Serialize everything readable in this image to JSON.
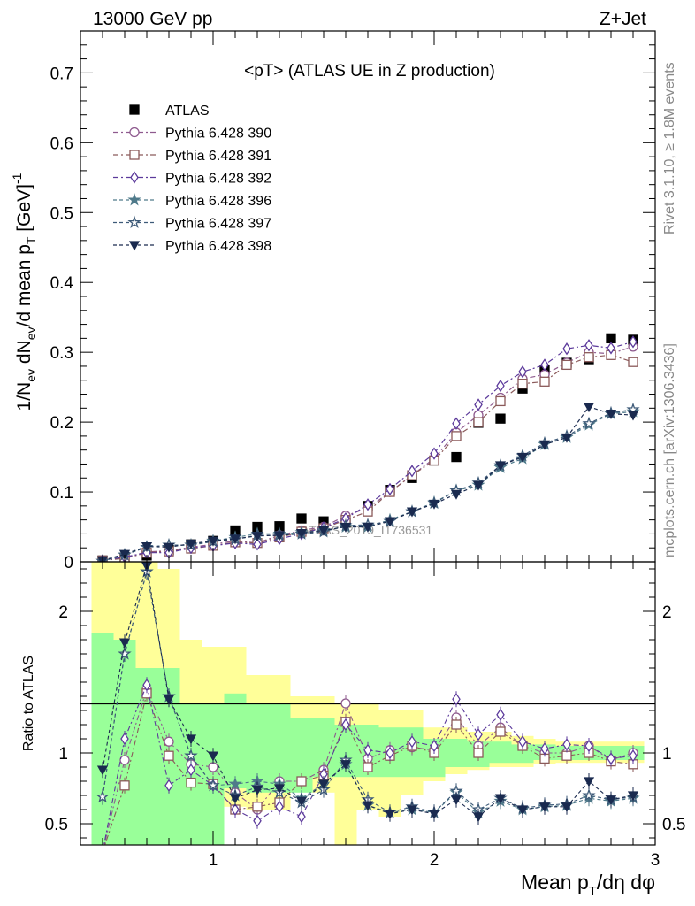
{
  "header": {
    "left": "13000 GeV pp",
    "right": "Z+Jet"
  },
  "side_text": {
    "top": "Rivet 3.1.10, ≥ 1.8M events",
    "bottom": "mcplots.cern.ch [arXiv:1306.3436]"
  },
  "watermark": "ATLAS_2019_I1736531",
  "chart_data": [
    {
      "type": "scatter",
      "panel": "main",
      "title": "<pT> (ATLAS UE in Z production)",
      "ylabel": "1/N_ev dN_ev/d mean p_T [GeV]^-1",
      "xlim": [
        0.4,
        3.0
      ],
      "ylim": [
        0,
        0.76
      ],
      "yticks": [
        0,
        0.1,
        0.2,
        0.3,
        0.4,
        0.5,
        0.6,
        0.7
      ],
      "x": [
        0.5,
        0.6,
        0.7,
        0.8,
        0.9,
        1.0,
        1.1,
        1.2,
        1.3,
        1.4,
        1.5,
        1.6,
        1.7,
        1.8,
        1.9,
        2.0,
        2.1,
        2.2,
        2.3,
        2.4,
        2.5,
        2.6,
        2.7,
        2.8,
        2.9
      ],
      "series": [
        {
          "name": "ATLAS",
          "color": "#000000",
          "marker": "square-filled",
          "values": [
            0.002,
            0.006,
            0.009,
            0.017,
            0.025,
            0.03,
            0.045,
            0.05,
            0.051,
            0.062,
            0.058,
            0.056,
            0.08,
            0.103,
            0.12,
            0.145,
            0.15,
            0.199,
            0.205,
            0.248,
            0.275,
            0.285,
            0.29,
            0.32,
            0.318
          ]
        },
        {
          "name": "Pythia 6.428 390",
          "color": "#8e5a8e",
          "marker": "circle-open",
          "values": [
            0.002,
            0.006,
            0.014,
            0.016,
            0.021,
            0.025,
            0.03,
            0.027,
            0.038,
            0.045,
            0.05,
            0.066,
            0.077,
            0.1,
            0.124,
            0.148,
            0.185,
            0.21,
            0.235,
            0.262,
            0.268,
            0.285,
            0.3,
            0.298,
            0.308
          ]
        },
        {
          "name": "Pythia 6.428 391",
          "color": "#8b5a5a",
          "marker": "square-open",
          "values": [
            0.002,
            0.005,
            0.013,
            0.015,
            0.019,
            0.023,
            0.028,
            0.027,
            0.035,
            0.043,
            0.048,
            0.06,
            0.072,
            0.1,
            0.124,
            0.145,
            0.18,
            0.2,
            0.23,
            0.255,
            0.258,
            0.282,
            0.293,
            0.296,
            0.286
          ]
        },
        {
          "name": "Pythia 6.428 392",
          "color": "#5c3a9b",
          "marker": "diamond-open",
          "values": [
            0.002,
            0.007,
            0.013,
            0.013,
            0.02,
            0.023,
            0.027,
            0.025,
            0.033,
            0.04,
            0.049,
            0.062,
            0.082,
            0.104,
            0.13,
            0.155,
            0.198,
            0.225,
            0.252,
            0.272,
            0.282,
            0.305,
            0.31,
            0.306,
            0.315
          ]
        },
        {
          "name": "Pythia 6.428 396",
          "color": "#4f7a8a",
          "marker": "star-filled",
          "values": [
            0.001,
            0.01,
            0.021,
            0.024,
            0.024,
            0.03,
            0.035,
            0.04,
            0.04,
            0.042,
            0.045,
            0.05,
            0.05,
            0.06,
            0.072,
            0.085,
            0.102,
            0.11,
            0.135,
            0.148,
            0.168,
            0.178,
            0.196,
            0.212,
            0.215
          ]
        },
        {
          "name": "Pythia 6.428 397",
          "color": "#3d5a78",
          "marker": "star-open",
          "values": [
            0.001,
            0.01,
            0.021,
            0.024,
            0.024,
            0.029,
            0.032,
            0.038,
            0.038,
            0.04,
            0.043,
            0.052,
            0.053,
            0.058,
            0.072,
            0.084,
            0.102,
            0.113,
            0.138,
            0.152,
            0.17,
            0.18,
            0.198,
            0.213,
            0.218
          ]
        },
        {
          "name": "Pythia 6.428 398",
          "color": "#1a2a4f",
          "marker": "triangle-down-filled",
          "values": [
            0.002,
            0.011,
            0.022,
            0.021,
            0.026,
            0.03,
            0.033,
            0.037,
            0.038,
            0.041,
            0.045,
            0.05,
            0.05,
            0.058,
            0.072,
            0.083,
            0.097,
            0.11,
            0.138,
            0.15,
            0.168,
            0.178,
            0.222,
            0.212,
            0.21
          ]
        }
      ]
    },
    {
      "type": "scatter",
      "panel": "ratio",
      "ylabel": "Ratio to ATLAS",
      "xlabel": "Mean p_T/dη dφ",
      "xlim": [
        0.4,
        3.0
      ],
      "ylim": [
        0.35,
        2.35
      ],
      "yticks": [
        0.5,
        1,
        2
      ],
      "xticks": [
        1,
        2,
        3
      ],
      "reference": 1,
      "bands": {
        "edges": [
          0.45,
          0.55,
          0.65,
          0.75,
          0.85,
          0.95,
          1.05,
          1.15,
          1.25,
          1.35,
          1.45,
          1.55,
          1.65,
          1.75,
          1.85,
          1.95,
          2.05,
          2.15,
          2.25,
          2.35,
          2.45,
          2.55,
          2.65,
          2.75,
          2.85,
          2.95
        ],
        "yellow_lo": [
          0.35,
          0.35,
          0.35,
          0.35,
          0.35,
          0.62,
          0.62,
          0.6,
          0.6,
          0.76,
          0.72,
          0.35,
          0.6,
          0.55,
          0.7,
          0.8,
          0.85,
          0.88,
          0.9,
          0.9,
          0.92,
          0.93,
          0.93,
          0.93,
          0.93
        ],
        "yellow_hi": [
          2.35,
          2.35,
          2.35,
          2.3,
          1.8,
          1.75,
          1.75,
          1.55,
          1.55,
          1.4,
          1.4,
          1.35,
          1.35,
          1.3,
          1.3,
          1.18,
          1.18,
          1.15,
          1.15,
          1.12,
          1.1,
          1.08,
          1.08,
          1.08,
          1.08
        ],
        "green_lo": [
          0.35,
          0.35,
          0.35,
          0.35,
          0.35,
          0.35,
          0.75,
          0.72,
          0.72,
          0.72,
          0.83,
          0.83,
          0.83,
          0.83,
          0.83,
          0.83,
          0.9,
          0.9,
          0.93,
          0.93,
          0.95,
          0.95,
          0.95,
          0.95,
          0.95
        ],
        "green_hi": [
          1.85,
          1.8,
          1.6,
          1.6,
          1.35,
          1.35,
          1.42,
          1.35,
          1.35,
          1.25,
          1.25,
          1.2,
          1.2,
          1.18,
          1.18,
          1.1,
          1.1,
          1.08,
          1.08,
          1.06,
          1.06,
          1.05,
          1.05,
          1.05,
          1.05
        ]
      },
      "series": [
        {
          "name": "Pythia 6.428 390",
          "values": [
            0.3,
            0.95,
            1.45,
            1.08,
            0.92,
            0.9,
            0.72,
            0.6,
            0.8,
            0.8,
            0.88,
            1.35,
            0.96,
            1.02,
            1.04,
            1.02,
            1.25,
            1.05,
            1.18,
            1.05,
            1.0,
            1.0,
            1.05,
            0.95,
            1.0
          ]
        },
        {
          "name": "Pythia 6.428 391",
          "values": [
            0.3,
            0.77,
            1.42,
            0.98,
            0.79,
            0.78,
            0.6,
            0.62,
            0.65,
            0.8,
            0.84,
            1.22,
            0.9,
            0.98,
            1.05,
            1.0,
            1.2,
            1.0,
            1.15,
            1.05,
            0.96,
            0.98,
            1.0,
            0.94,
            0.92
          ]
        },
        {
          "name": "Pythia 6.428 392",
          "values": [
            0.3,
            1.1,
            1.48,
            0.77,
            0.88,
            0.77,
            0.6,
            0.52,
            0.62,
            0.55,
            0.85,
            1.2,
            1.02,
            1.0,
            1.08,
            1.05,
            1.38,
            1.13,
            1.27,
            1.08,
            1.03,
            1.06,
            1.05,
            0.96,
            0.98
          ]
        },
        {
          "name": "Pythia 6.428 396",
          "values": [
            0.69,
            1.7,
            2.28,
            1.4,
            0.98,
            0.77,
            0.78,
            0.8,
            0.78,
            0.68,
            0.78,
            0.92,
            0.63,
            0.58,
            0.6,
            0.58,
            0.72,
            0.58,
            0.66,
            0.6,
            0.62,
            0.63,
            0.68,
            0.66,
            0.68
          ]
        },
        {
          "name": "Pythia 6.428 397",
          "values": [
            0.69,
            1.7,
            2.28,
            1.4,
            0.98,
            0.77,
            0.7,
            0.76,
            0.72,
            0.65,
            0.74,
            0.95,
            0.67,
            0.58,
            0.62,
            0.58,
            0.73,
            0.6,
            0.68,
            0.61,
            0.63,
            0.64,
            0.7,
            0.67,
            0.69
          ]
        },
        {
          "name": "Pythia 6.428 398",
          "values": [
            0.88,
            1.78,
            2.32,
            1.38,
            1.1,
            0.98,
            0.68,
            0.74,
            0.75,
            0.66,
            0.78,
            0.92,
            0.63,
            0.57,
            0.6,
            0.57,
            0.67,
            0.55,
            0.68,
            0.6,
            0.62,
            0.62,
            0.8,
            0.67,
            0.7
          ]
        }
      ]
    }
  ]
}
